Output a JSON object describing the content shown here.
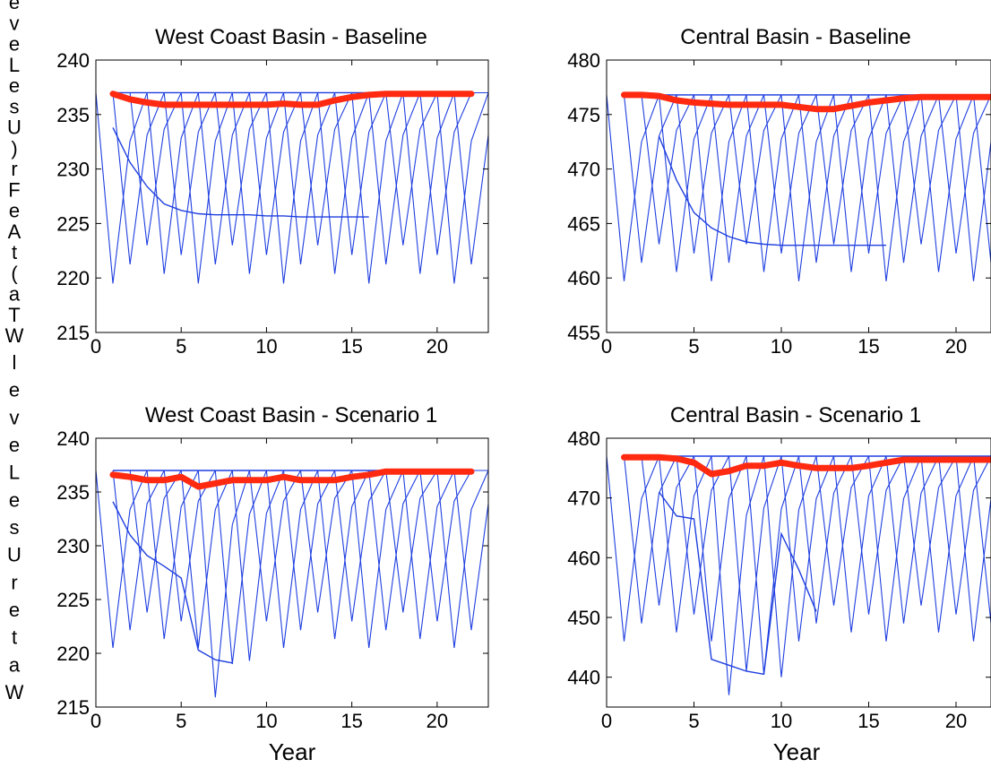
{
  "figure": {
    "ylabel_glyphs_top": [
      "e",
      "v",
      "e",
      "L",
      "e",
      "s",
      "U",
      ")",
      "r",
      "F",
      "e",
      "A",
      "t",
      "(",
      "a",
      "T",
      "W"
    ],
    "ylabel_glyphs_bottom": [
      "l",
      "e",
      "v",
      "e",
      "L",
      "e",
      "s",
      "U",
      "r",
      "e",
      "t",
      "a",
      "W"
    ],
    "xlabel": "Year"
  },
  "colors": {
    "background": "#ffffff",
    "scenario_lines": "#1f3fe0",
    "baseline_highlight": "#ff2a10",
    "axis": "#000000"
  },
  "chart_data": [
    {
      "type": "line",
      "title": "West Coast Basin - Baseline",
      "xlim": [
        0,
        23
      ],
      "ylim": [
        215,
        240
      ],
      "xticks": [
        0,
        5,
        10,
        15,
        20
      ],
      "yticks": [
        215,
        220,
        225,
        230,
        235,
        240
      ],
      "ref_level": 237.0,
      "dip_min": 219.5,
      "dip_depth": 17.5,
      "recovery": 1.0,
      "bold": {
        "x": [
          1,
          2,
          3,
          4,
          5,
          6,
          7,
          8,
          9,
          10,
          11,
          12,
          13,
          14,
          15,
          16,
          17,
          18,
          19,
          20,
          21,
          22
        ],
        "y": [
          236.9,
          236.4,
          236.1,
          235.9,
          235.9,
          235.9,
          235.9,
          235.9,
          235.9,
          235.9,
          236.0,
          235.9,
          235.9,
          236.3,
          236.6,
          236.8,
          236.9,
          236.9,
          236.9,
          236.9,
          236.9,
          236.9
        ]
      },
      "envelope": {
        "x": [
          1,
          2,
          3,
          4,
          5,
          6,
          7,
          8,
          9,
          10,
          11,
          12,
          13,
          14,
          15,
          16
        ],
        "y": [
          233.8,
          230.6,
          228.4,
          226.8,
          226.2,
          225.9,
          225.8,
          225.8,
          225.8,
          225.7,
          225.7,
          225.6,
          225.6,
          225.6,
          225.6,
          225.6
        ]
      }
    },
    {
      "type": "line",
      "title": "Central Basin - Baseline",
      "xlim": [
        0,
        22
      ],
      "ylim": [
        455,
        480
      ],
      "xticks": [
        0,
        5,
        10,
        15,
        20
      ],
      "yticks": [
        455,
        460,
        465,
        470,
        475,
        480
      ],
      "ref_level": 476.8,
      "dip_min": 459.7,
      "dip_depth": 17.0,
      "recovery": 1.0,
      "bold": {
        "x": [
          1,
          2,
          3,
          4,
          5,
          6,
          7,
          8,
          9,
          10,
          11,
          12,
          13,
          14,
          15,
          16,
          17,
          18,
          19,
          20,
          21,
          22
        ],
        "y": [
          476.8,
          476.8,
          476.7,
          476.3,
          476.1,
          476.0,
          475.9,
          475.9,
          475.9,
          475.9,
          475.7,
          475.5,
          475.5,
          475.8,
          476.1,
          476.3,
          476.5,
          476.6,
          476.6,
          476.6,
          476.6,
          476.6
        ]
      },
      "envelope": {
        "x": [
          3,
          4,
          5,
          6,
          7,
          8,
          9,
          10,
          11,
          12,
          13,
          14,
          15,
          16
        ],
        "y": [
          473.0,
          469.0,
          466.0,
          464.6,
          463.8,
          463.3,
          463.1,
          463.0,
          463.0,
          463.0,
          463.0,
          463.0,
          463.0,
          463.0
        ]
      }
    },
    {
      "type": "line",
      "title": "West Coast Basin - Scenario 1",
      "xlim": [
        0,
        23
      ],
      "ylim": [
        215,
        240
      ],
      "xticks": [
        0,
        5,
        10,
        15,
        20
      ],
      "yticks": [
        215,
        220,
        225,
        230,
        235,
        240
      ],
      "ref_level": 237.0,
      "dip_min": 220.5,
      "dip_depth": 16.5,
      "recovery": 1.5,
      "extra_min": {
        "6": 215.9,
        "7": 219.0,
        "8": 219.3
      },
      "bold": {
        "x": [
          1,
          2,
          3,
          4,
          5,
          6,
          7,
          8,
          9,
          10,
          11,
          12,
          13,
          14,
          15,
          16,
          17,
          18,
          19,
          20,
          21,
          22
        ],
        "y": [
          236.6,
          236.4,
          236.1,
          236.1,
          236.4,
          235.5,
          235.8,
          236.1,
          236.1,
          236.1,
          236.4,
          236.1,
          236.1,
          236.1,
          236.4,
          236.6,
          236.9,
          236.9,
          236.9,
          236.9,
          236.9,
          236.9
        ]
      },
      "envelope": {
        "x": [
          1,
          2,
          3,
          4,
          5,
          6,
          7,
          8
        ],
        "y": [
          234.1,
          231.0,
          229.1,
          228.1,
          227.0,
          220.3,
          219.4,
          219.1
        ]
      }
    },
    {
      "type": "line",
      "title": "Central Basin - Scenario 1",
      "xlim": [
        0,
        22
      ],
      "ylim": [
        435,
        480
      ],
      "xticks": [
        0,
        5,
        10,
        15,
        20
      ],
      "yticks": [
        440,
        450,
        460,
        470,
        480
      ],
      "ref_level": 477.0,
      "dip_min": 446.0,
      "dip_depth": 30.0,
      "recovery": 2.5,
      "extra_min": {
        "6": 437.0,
        "7": 441.0,
        "8": 440.5,
        "9": 440.0
      },
      "bold": {
        "x": [
          1,
          2,
          3,
          4,
          5,
          6,
          7,
          8,
          9,
          10,
          11,
          12,
          13,
          14,
          15,
          16,
          17,
          18,
          19,
          20,
          21,
          22
        ],
        "y": [
          476.8,
          476.8,
          476.8,
          476.6,
          475.9,
          474.0,
          474.5,
          475.4,
          475.4,
          475.9,
          475.4,
          475.0,
          475.0,
          475.0,
          475.4,
          475.9,
          476.4,
          476.4,
          476.4,
          476.4,
          476.4,
          476.4
        ]
      },
      "envelope": {
        "x": [
          3,
          4,
          5,
          6,
          7,
          8,
          9,
          10,
          11,
          12
        ],
        "y": [
          471.0,
          467.0,
          466.5,
          443.0,
          442.0,
          441.0,
          440.5,
          464.0,
          458.0,
          451.0
        ]
      }
    }
  ]
}
